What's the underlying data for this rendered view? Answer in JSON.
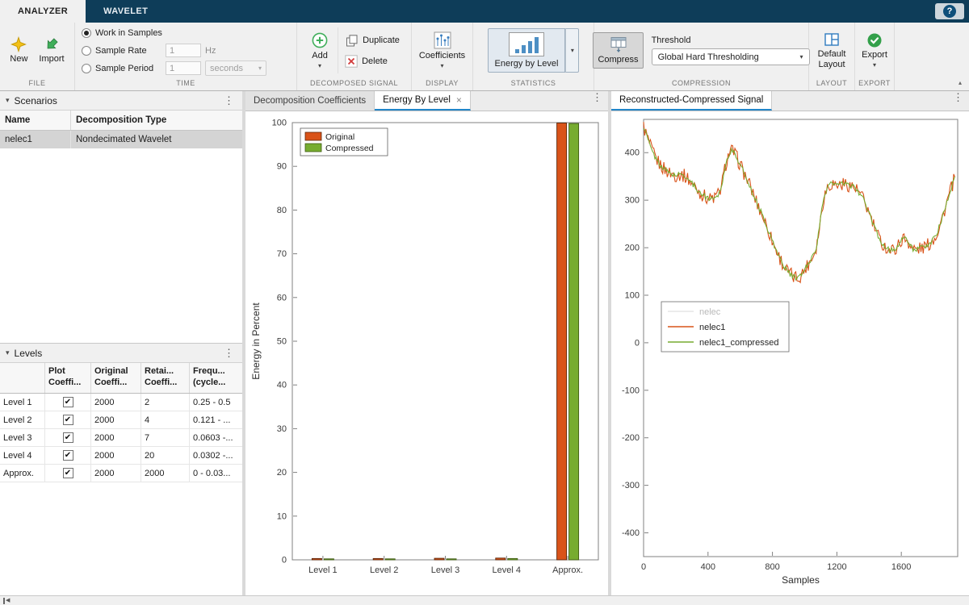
{
  "window": {
    "tabs": [
      {
        "label": "ANALYZER"
      },
      {
        "label": "WAVELET"
      }
    ]
  },
  "icons": {
    "close": "×",
    "menu": "⋮",
    "dropdown": "▾",
    "panel_collapse": "▾",
    "help": "?",
    "check": "✔",
    "ribbon_collapse": "▴",
    "status_collapse": "◀"
  },
  "ribbon": {
    "file": {
      "label": "FILE",
      "new_label": "New",
      "import_label": "Import"
    },
    "time": {
      "label": "TIME",
      "options": [
        {
          "label": "Work in Samples",
          "selected": true
        },
        {
          "label": "Sample Rate",
          "selected": false
        },
        {
          "label": "Sample Period",
          "selected": false
        }
      ],
      "sample_rate_value": "1",
      "sample_rate_unit": "Hz",
      "sample_period_value": "1",
      "sample_period_unit": "seconds"
    },
    "decomposed_signal": {
      "label": "DECOMPOSED SIGNAL",
      "add_label": "Add",
      "duplicate_label": "Duplicate",
      "delete_label": "Delete"
    },
    "display": {
      "label": "DISPLAY",
      "coefficients_label": "Coefficients"
    },
    "statistics": {
      "label": "STATISTICS",
      "energy_by_level_label": "Energy by Level"
    },
    "compression": {
      "label": "COMPRESSION",
      "compress_label": "Compress",
      "threshold_label": "Threshold",
      "threshold_value": "Global Hard Thresholding"
    },
    "layout": {
      "label": "LAYOUT",
      "default_layout_label": "Default Layout"
    },
    "export": {
      "label": "EXPORT",
      "export_label": "Export"
    }
  },
  "scenarios": {
    "title": "Scenarios",
    "columns": [
      "Name",
      "Decomposition Type"
    ],
    "rows": [
      {
        "name": "nelec1",
        "type": "Nondecimated Wavelet",
        "selected": true
      }
    ]
  },
  "levels": {
    "title": "Levels",
    "columns": [
      {
        "l1": "",
        "l2": ""
      },
      {
        "l1": "Plot",
        "l2": "Coeffi..."
      },
      {
        "l1": "Original",
        "l2": "Coeffi..."
      },
      {
        "l1": "Retai...",
        "l2": "Coeffi..."
      },
      {
        "l1": "Frequ...",
        "l2": "(cycle..."
      }
    ],
    "rows": [
      {
        "label": "Level 1",
        "plot": true,
        "original": "2000",
        "retained": "2",
        "freq": "0.25 - 0.5"
      },
      {
        "label": "Level 2",
        "plot": true,
        "original": "2000",
        "retained": "4",
        "freq": "0.121 - ..."
      },
      {
        "label": "Level 3",
        "plot": true,
        "original": "2000",
        "retained": "7",
        "freq": "0.0603 -..."
      },
      {
        "label": "Level 4",
        "plot": true,
        "original": "2000",
        "retained": "20",
        "freq": "0.0302 -..."
      },
      {
        "label": "Approx.",
        "plot": true,
        "original": "2000",
        "retained": "2000",
        "freq": "0 - 0.03..."
      }
    ]
  },
  "center_panel": {
    "tabs": [
      {
        "label": "Decomposition Coefficients"
      },
      {
        "label": "Energy By Level"
      }
    ]
  },
  "right_panel": {
    "title": "Reconstructed-Compressed Signal"
  },
  "chart_data": [
    {
      "type": "bar",
      "categories": [
        "Level 1",
        "Level 2",
        "Level 3",
        "Level 4",
        "Approx."
      ],
      "series": [
        {
          "name": "Original",
          "color": "#d95319",
          "edge": "#5c2508",
          "values": [
            0.3,
            0.3,
            0.35,
            0.4,
            99.9
          ]
        },
        {
          "name": "Compressed",
          "color": "#77ac30",
          "edge": "#3e5a12",
          "values": [
            0.05,
            0.1,
            0.2,
            0.3,
            99.8
          ]
        }
      ],
      "title": "",
      "xlabel": "",
      "ylabel": "Energy in Percent",
      "ylim": [
        0,
        100
      ],
      "ytick_step": 10,
      "grid": false,
      "legend_position": "top-left"
    },
    {
      "type": "line",
      "xlabel": "Samples",
      "ylabel": "",
      "xlim": [
        0,
        1950
      ],
      "ylim": [
        -450,
        470
      ],
      "xticks": [
        0,
        400,
        800,
        1200,
        1600
      ],
      "yticks": [
        -400,
        -300,
        -200,
        -100,
        0,
        100,
        200,
        300,
        400
      ],
      "grid": false,
      "legend_position": "middle-left",
      "series": [
        {
          "name": "nelec",
          "color": "#dcdcdc",
          "hidden": true,
          "noise": 0
        },
        {
          "name": "nelec1",
          "color": "#d95319",
          "hidden": false,
          "noise": 30
        },
        {
          "name": "nelec1_compressed",
          "color": "#77ac30",
          "hidden": false,
          "noise": 11
        }
      ],
      "base_signal": {
        "x": [
          0,
          25,
          50,
          80,
          110,
          140,
          170,
          200,
          230,
          260,
          290,
          320,
          350,
          380,
          410,
          440,
          470,
          490,
          510,
          530,
          550,
          570,
          600,
          630,
          660,
          690,
          720,
          750,
          780,
          810,
          840,
          870,
          900,
          930,
          960,
          990,
          1020,
          1050,
          1075,
          1095,
          1115,
          1140,
          1170,
          1200,
          1240,
          1280,
          1310,
          1340,
          1370,
          1400,
          1430,
          1460,
          1490,
          1520,
          1550,
          1580,
          1610,
          1640,
          1670,
          1700,
          1730,
          1760,
          1790,
          1820,
          1850,
          1880,
          1910,
          1935
        ],
        "y": [
          455,
          430,
          405,
          385,
          372,
          362,
          356,
          352,
          355,
          350,
          340,
          328,
          316,
          308,
          303,
          305,
          315,
          340,
          375,
          398,
          405,
          395,
          375,
          352,
          330,
          305,
          282,
          258,
          232,
          205,
          182,
          162,
          148,
          138,
          136,
          148,
          165,
          182,
          205,
          250,
          300,
          328,
          336,
          332,
          334,
          332,
          326,
          315,
          298,
          272,
          245,
          220,
          205,
          196,
          194,
          205,
          220,
          215,
          198,
          196,
          200,
          204,
          214,
          230,
          258,
          292,
          325,
          350
        ]
      }
    }
  ]
}
